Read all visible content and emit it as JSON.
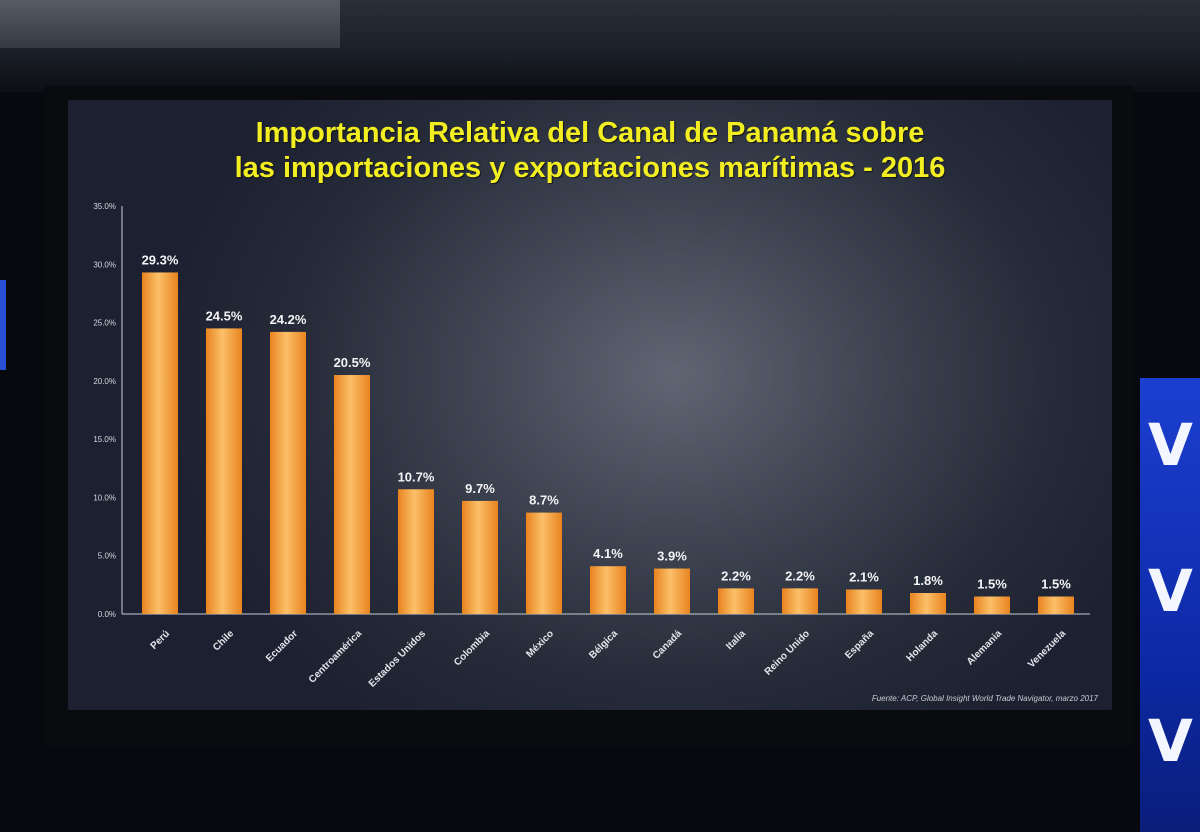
{
  "slide": {
    "title_line1": "Importancia Relativa del Canal de Panamá sobre",
    "title_line2": "las importaciones y exportaciones marítimas - 2016",
    "source": "Fuente: ACP, Global Insight World Trade Navigator, marzo 2017"
  },
  "colors": {
    "title": "#f2ee22",
    "bar_light": "#fbc06a",
    "bar_dark": "#e8831f",
    "background": "#2e3444"
  },
  "chart_data": {
    "type": "bar",
    "title": "Importancia Relativa del Canal de Panamá sobre las importaciones y exportaciones marítimas - 2016",
    "categories": [
      "Perú",
      "Chile",
      "Ecuador",
      "Centroamérica",
      "Estados Unidos",
      "Colombia",
      "México",
      "Bélgica",
      "Canadá",
      "Italia",
      "Reino Unido",
      "España",
      "Holanda",
      "Alemania",
      "Venezuela"
    ],
    "values": [
      29.3,
      24.5,
      24.2,
      20.5,
      10.7,
      9.7,
      8.7,
      4.1,
      3.9,
      2.2,
      2.2,
      2.1,
      1.8,
      1.5,
      1.5
    ],
    "data_labels": [
      "29.3%",
      "24.5%",
      "24.2%",
      "20.5%",
      "10.7%",
      "9.7%",
      "8.7%",
      "4.1%",
      "3.9%",
      "2.2%",
      "2.2%",
      "2.1%",
      "1.8%",
      "1.5%",
      "1.5%"
    ],
    "y_ticks": [
      0,
      5,
      10,
      15,
      20,
      25,
      30,
      35
    ],
    "y_tick_labels": [
      "0.0%",
      "5.0%",
      "10.0%",
      "15.0%",
      "20.0%",
      "25.0%",
      "30.0%",
      "35.0%"
    ],
    "ylim": [
      0,
      35
    ],
    "xlabel": "",
    "ylabel": "",
    "grid": false,
    "legend": "none"
  }
}
